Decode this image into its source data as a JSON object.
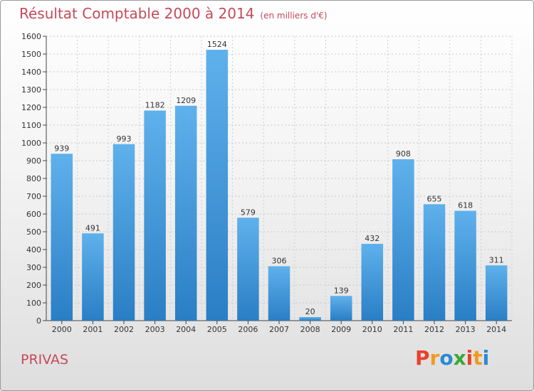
{
  "header": {
    "title": "Résultat Comptable 2000 à 2014",
    "unit": "(en milliers d'€)"
  },
  "footer": {
    "city": "PRIVAS",
    "logo": [
      "P",
      "r",
      "o",
      "x",
      "i",
      "t",
      "i"
    ]
  },
  "colors": {
    "title": "#c44a5a",
    "bar": "#3f95d8",
    "logo": [
      "#e8412c",
      "#f39a1e",
      "#2a8ad4",
      "#3aa935",
      "#e8412c",
      "#f39a1e",
      "#2a8ad4"
    ]
  },
  "chart_data": {
    "type": "bar",
    "title": "Résultat Comptable 2000 à 2014",
    "xlabel": "",
    "ylabel": "",
    "categories": [
      "2000",
      "2001",
      "2002",
      "2003",
      "2004",
      "2005",
      "2006",
      "2007",
      "2008",
      "2009",
      "2010",
      "2011",
      "2012",
      "2013",
      "2014"
    ],
    "values": [
      939,
      491,
      993,
      1182,
      1209,
      1524,
      579,
      306,
      20,
      139,
      432,
      908,
      655,
      618,
      311
    ],
    "ylim": [
      0,
      1600
    ],
    "yticks": [
      0,
      100,
      200,
      300,
      400,
      500,
      600,
      700,
      800,
      900,
      1000,
      1100,
      1200,
      1300,
      1400,
      1500,
      1600
    ],
    "grid": true,
    "legend": "none"
  }
}
